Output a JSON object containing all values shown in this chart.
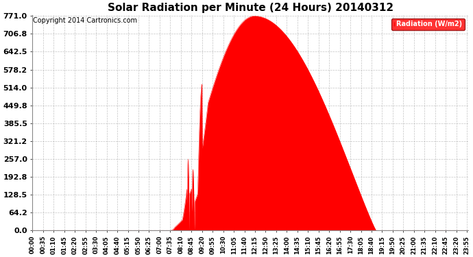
{
  "title": "Solar Radiation per Minute (24 Hours) 20140312",
  "copyright": "Copyright 2014 Cartronics.com",
  "legend_label": "Radiation (W/m2)",
  "yticks": [
    0.0,
    64.2,
    128.5,
    192.8,
    257.0,
    321.2,
    385.5,
    449.8,
    514.0,
    578.2,
    642.5,
    706.8,
    771.0
  ],
  "ymax": 771.0,
  "ymin": 0.0,
  "fill_color": "#FF0000",
  "line_color": "#FF0000",
  "bg_color": "#FFFFFF",
  "grid_color": "#AAAAAA",
  "dashed_zero_color": "#FF0000",
  "title_fontsize": 11,
  "copyright_fontsize": 7,
  "tick_fontsize": 6,
  "ytick_fontsize": 8,
  "sunrise": 455,
  "sunset": 1135,
  "solar_noon": 733,
  "peak_value": 771.0
}
